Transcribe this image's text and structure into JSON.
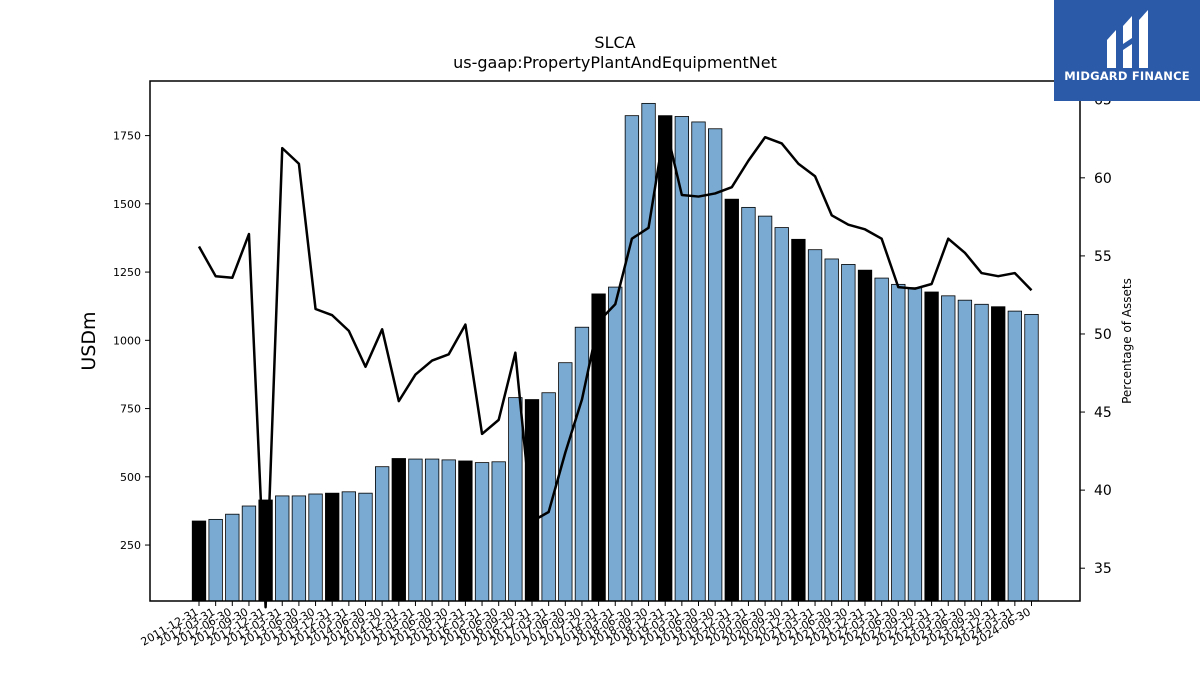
{
  "chart_data": {
    "type": "bar",
    "title": "SLCA",
    "subtitle": "us-gaap:PropertyPlantAndEquipmentNet",
    "ylabel": "USDm",
    "y2label": "Percentage of Assets",
    "ylim": [
      45,
      1950
    ],
    "y2lim": [
      32.9,
      66.2
    ],
    "yticks": [
      250,
      500,
      750,
      1000,
      1250,
      1500,
      1750
    ],
    "y2ticks": [
      35,
      40,
      45,
      50,
      55,
      60,
      65
    ],
    "categories": [
      "2011-12-31",
      "2012-03-31",
      "2012-06-30",
      "2012-09-30",
      "2012-12-31",
      "2013-03-31",
      "2013-06-30",
      "2013-09-30",
      "2013-12-31",
      "2014-03-31",
      "2014-06-30",
      "2014-09-30",
      "2014-12-31",
      "2015-03-31",
      "2015-06-30",
      "2015-09-30",
      "2015-12-31",
      "2016-03-31",
      "2016-06-30",
      "2016-09-30",
      "2016-12-31",
      "2017-03-31",
      "2017-06-30",
      "2017-09-30",
      "2017-12-31",
      "2018-03-31",
      "2018-06-30",
      "2018-09-30",
      "2018-12-31",
      "2019-03-31",
      "2019-06-30",
      "2019-09-30",
      "2019-12-31",
      "2020-03-31",
      "2020-06-30",
      "2020-09-30",
      "2020-12-31",
      "2021-03-31",
      "2021-06-30",
      "2021-09-30",
      "2021-12-31",
      "2022-03-31",
      "2022-06-30",
      "2022-09-30",
      "2022-12-31",
      "2023-03-31",
      "2023-06-30",
      "2023-09-30",
      "2023-12-31",
      "2024-03-31",
      "2024-06-30"
    ],
    "values": [
      338,
      344,
      363,
      393,
      415,
      430,
      430,
      437,
      440,
      445,
      440,
      537,
      567,
      565,
      565,
      562,
      558,
      552,
      555,
      790,
      783,
      808,
      918,
      1048,
      1170,
      1195,
      1823,
      1868,
      1823,
      1820,
      1800,
      1775,
      1517,
      1487,
      1455,
      1413,
      1370,
      1332,
      1298,
      1278,
      1257,
      1228,
      1205,
      1193,
      1177,
      1163,
      1147,
      1132,
      1123,
      1107,
      1095
    ],
    "highlight": [
      true,
      false,
      false,
      false,
      true,
      false,
      false,
      false,
      true,
      false,
      false,
      false,
      true,
      false,
      false,
      false,
      true,
      false,
      false,
      false,
      true,
      false,
      false,
      false,
      true,
      false,
      false,
      false,
      true,
      false,
      false,
      false,
      true,
      false,
      false,
      false,
      true,
      false,
      false,
      false,
      true,
      false,
      false,
      false,
      true,
      false,
      false,
      false,
      true,
      false,
      false
    ],
    "percentage": [
      55.6,
      53.7,
      53.6,
      56.4,
      32.5,
      61.9,
      60.9,
      51.6,
      51.2,
      50.2,
      47.9,
      50.3,
      45.7,
      47.4,
      48.3,
      48.7,
      50.6,
      43.6,
      44.5,
      48.8,
      38.0,
      38.6,
      42.4,
      45.8,
      50.8,
      51.9,
      56.1,
      56.8,
      63.4,
      58.9,
      58.8,
      59.0,
      59.4,
      61.1,
      62.6,
      62.2,
      60.9,
      60.1,
      57.6,
      57.0,
      56.7,
      56.1,
      53.0,
      52.9,
      53.2,
      56.1,
      55.2,
      53.9,
      53.7,
      53.9,
      52.8
    ],
    "colors": {
      "bar": "#7aaad2",
      "highlight_bar": "#000000",
      "line": "#000000",
      "edge": "#000000"
    }
  },
  "logo": {
    "text": "MIDGARD FINANCE",
    "color": "#2a5aa8"
  }
}
